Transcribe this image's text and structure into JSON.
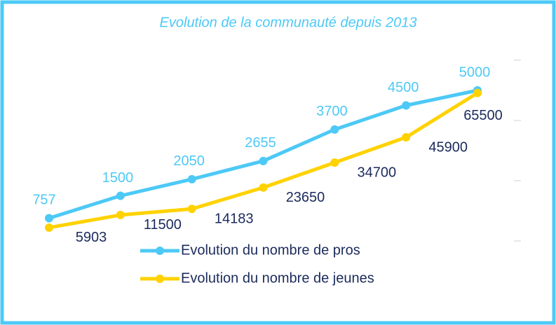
{
  "chart_data": {
    "type": "line",
    "title": "Evolution de la communauté depuis 2013",
    "categories": [
      null,
      null,
      null,
      null,
      null,
      null,
      null
    ],
    "series": [
      {
        "name": "Evolution du nombre de pros",
        "color": "#4dc9f6",
        "values": [
          757,
          1500,
          2050,
          2655,
          3700,
          4500,
          5000
        ]
      },
      {
        "name": "Evolution du nombre de jeunes",
        "color": "#ffd200",
        "axis": "y2",
        "values": [
          5903,
          11500,
          14183,
          23650,
          34700,
          45900,
          65500
        ]
      }
    ],
    "ylim": [
      0,
      6000
    ],
    "yticks": [
      0,
      2000,
      4000,
      6000
    ],
    "y2lim": [
      0,
      80000
    ]
  }
}
